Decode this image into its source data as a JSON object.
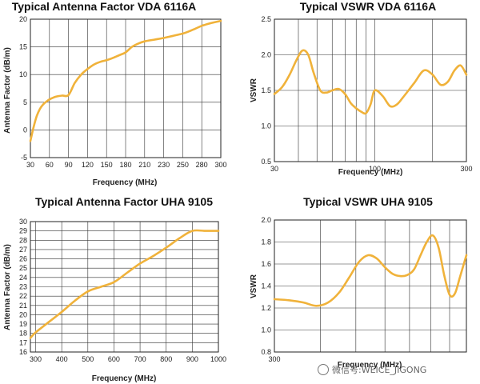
{
  "chart_data": [
    {
      "type": "line",
      "title": "Typical Antenna Factor  VDA 6116A",
      "xlabel": "Frequency (MHz)",
      "ylabel": "Antenna Factor (dB/m)",
      "xscale": "custom-ticks",
      "xticks": [
        30,
        60,
        90,
        120,
        150,
        180,
        210,
        230,
        250,
        280,
        300
      ],
      "xlim": [
        30,
        300
      ],
      "ylim": [
        -5,
        20
      ],
      "yticks": [
        -5,
        0,
        5,
        10,
        15,
        20
      ],
      "grid": true,
      "series": [
        {
          "x": [
            30,
            35,
            40,
            45,
            50,
            55,
            60,
            70,
            80,
            90,
            100,
            110,
            120,
            130,
            140,
            150,
            160,
            170,
            180,
            190,
            200,
            210,
            220,
            230,
            240,
            250,
            260,
            270,
            280,
            290,
            300
          ],
          "values": [
            -2,
            0.5,
            2.5,
            3.8,
            4.6,
            5.1,
            5.5,
            6.0,
            6.2,
            6.3,
            8.5,
            10.0,
            11.0,
            11.8,
            12.3,
            12.6,
            13.0,
            13.5,
            14.0,
            15.0,
            15.6,
            16.0,
            16.3,
            16.6,
            17.0,
            17.4,
            17.8,
            18.3,
            18.8,
            19.3,
            19.7
          ]
        }
      ]
    },
    {
      "type": "line",
      "title": "Typical VSWR  VDA 6116A",
      "xlabel": "Frequency (MHz)",
      "ylabel": "VSWR",
      "xscale": "log",
      "xticks": [
        30,
        100,
        300
      ],
      "xlim": [
        30,
        300
      ],
      "ylim": [
        0.5,
        2.5
      ],
      "yticks": [
        0.5,
        1.0,
        1.5,
        2.0,
        2.5
      ],
      "grid": true,
      "series": [
        {
          "x": [
            30,
            33,
            36,
            39,
            42,
            45,
            48,
            52,
            56,
            60,
            65,
            70,
            75,
            80,
            85,
            90,
            95,
            100,
            110,
            120,
            130,
            140,
            160,
            180,
            200,
            220,
            240,
            260,
            280,
            300
          ],
          "values": [
            1.45,
            1.55,
            1.72,
            1.92,
            2.06,
            2.0,
            1.75,
            1.5,
            1.47,
            1.5,
            1.52,
            1.45,
            1.32,
            1.25,
            1.2,
            1.18,
            1.3,
            1.5,
            1.42,
            1.28,
            1.3,
            1.4,
            1.6,
            1.78,
            1.72,
            1.58,
            1.62,
            1.78,
            1.85,
            1.72
          ]
        }
      ]
    },
    {
      "type": "line",
      "title": "Typical Antenna Factor  UHA 9105",
      "xlabel": "Frequency (MHz)",
      "ylabel": "Antenna Factor (dB/m)",
      "xscale": "linear",
      "xticks": [
        300,
        400,
        500,
        600,
        700,
        800,
        900,
        1000
      ],
      "xlim": [
        280,
        1000
      ],
      "ylim": [
        16,
        30
      ],
      "yticks": [
        16,
        17,
        18,
        19,
        20,
        21,
        22,
        23,
        24,
        25,
        26,
        27,
        28,
        29,
        30
      ],
      "grid": true,
      "series": [
        {
          "x": [
            280,
            300,
            350,
            400,
            450,
            500,
            550,
            600,
            650,
            700,
            750,
            800,
            850,
            900,
            950,
            1000
          ],
          "values": [
            17.5,
            18.1,
            19.2,
            20.3,
            21.5,
            22.5,
            23.0,
            23.5,
            24.5,
            25.5,
            26.3,
            27.2,
            28.2,
            29.0,
            29.0,
            29.0
          ]
        }
      ]
    },
    {
      "type": "line",
      "title": "Typical VSWR  UHA 9105",
      "xlabel": "Frequency (MHz)",
      "ylabel": "VSWR",
      "xscale": "log",
      "xticks": [
        300
      ],
      "xlim": [
        300,
        1000
      ],
      "ylim": [
        0.8,
        2.0
      ],
      "yticks": [
        0.8,
        1.0,
        1.2,
        1.4,
        1.6,
        1.8,
        2.0
      ],
      "grid": true,
      "series": [
        {
          "x": [
            300,
            330,
            360,
            390,
            420,
            450,
            480,
            510,
            540,
            570,
            600,
            630,
            660,
            690,
            720,
            750,
            780,
            810,
            840,
            870,
            900,
            930,
            960,
            1000
          ],
          "values": [
            1.28,
            1.27,
            1.25,
            1.22,
            1.25,
            1.34,
            1.48,
            1.62,
            1.68,
            1.65,
            1.57,
            1.51,
            1.49,
            1.5,
            1.55,
            1.68,
            1.8,
            1.86,
            1.75,
            1.5,
            1.32,
            1.33,
            1.48,
            1.68
          ]
        }
      ]
    }
  ],
  "watermark": "微信号:WEICE_JIGONG"
}
